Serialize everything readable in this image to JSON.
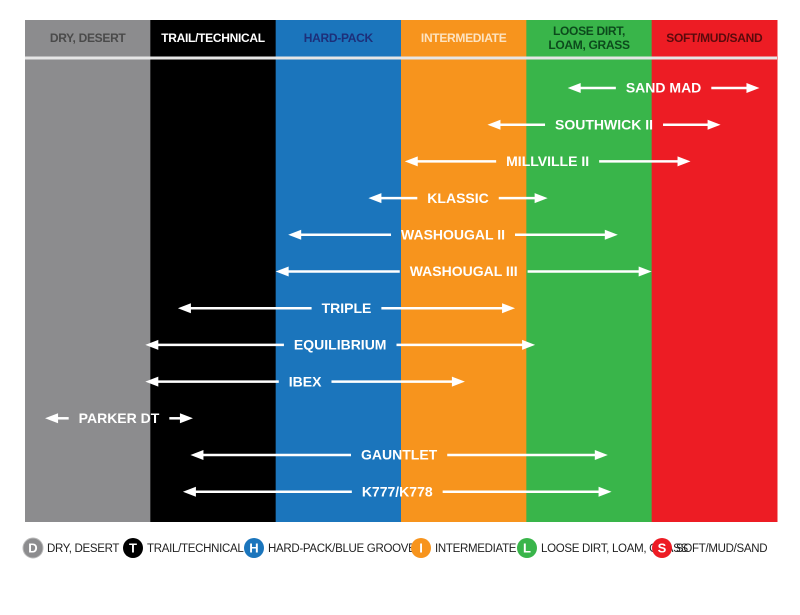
{
  "columns": [
    {
      "label": "DRY, DESERT",
      "letter": "D",
      "legend": "DRY, DESERT",
      "color": "#8c8c8e",
      "text_color": "#4a4a4a"
    },
    {
      "label": "TRAIL/TECHNICAL",
      "letter": "T",
      "legend": "TRAIL/TECHNICAL",
      "color": "#000000",
      "text_color": "#ffffff"
    },
    {
      "label": "HARD-PACK",
      "letter": "H",
      "legend": "HARD-PACK/BLUE GROOVE",
      "color": "#1b75bc",
      "text_color": "#1d2f7a"
    },
    {
      "label": "INTERMEDIATE",
      "letter": "I",
      "legend": "INTERMEDIATE",
      "color": "#f7941d",
      "text_color": "#fde3c0"
    },
    {
      "label": "LOOSE DIRT, LOAM, GRASS",
      "letter": "L",
      "legend": "LOOSE DIRT, LOAM, GRASS",
      "color": "#39b54a",
      "text_color": "#0c4a1c"
    },
    {
      "label": "SOFT/MUD/SAND",
      "letter": "S",
      "legend": "SOFT/MUD/SAND",
      "color": "#ed1c24",
      "text_color": "#5a0a0c"
    }
  ],
  "tires": [
    {
      "name": "SAND MAD",
      "from": 4.33,
      "to": 5.86
    },
    {
      "name": "SOUTHWICK II",
      "from": 3.69,
      "to": 5.55
    },
    {
      "name": "MILLVILLE II",
      "from": 3.03,
      "to": 5.31
    },
    {
      "name": "KLASSIC",
      "from": 2.74,
      "to": 4.17
    },
    {
      "name": "WASHOUGAL II",
      "from": 2.1,
      "to": 4.73
    },
    {
      "name": "WASHOUGAL III",
      "from": 2.0,
      "to": 5.0
    },
    {
      "name": "TRIPLE",
      "from": 1.22,
      "to": 3.91
    },
    {
      "name": "EQUILIBRIUM",
      "from": 0.96,
      "to": 4.07
    },
    {
      "name": "IBEX",
      "from": 0.96,
      "to": 3.51
    },
    {
      "name": "PARKER DT",
      "from": 0.16,
      "to": 1.34
    },
    {
      "name": "GAUNTLET",
      "from": 1.32,
      "to": 4.65
    },
    {
      "name": "K777/K778",
      "from": 1.26,
      "to": 4.68
    }
  ]
}
